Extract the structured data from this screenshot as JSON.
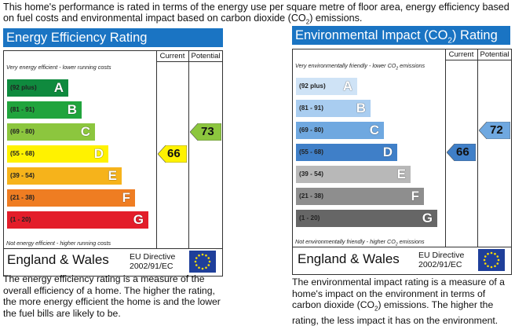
{
  "intro": {
    "line1": "This home's performance is rated in terms of the energy use per square metre of floor area, energy efficiency based",
    "line2_pre": "on fuel costs and environmental impact based on carbon dioxide (CO",
    "line2_sub": "2",
    "line2_post": ") emissions."
  },
  "eer": {
    "title": "Energy Efficiency Rating",
    "col_current": "Current",
    "col_potential": "Potential",
    "top_note": "Very energy efficient - lower running costs",
    "bottom_note": "Not energy efficient - higher running costs",
    "bands": [
      {
        "range": "(92 plus)",
        "letter": "A",
        "color": "#0f8a3e"
      },
      {
        "range": "(81 - 91)",
        "letter": "B",
        "color": "#21a43d"
      },
      {
        "range": "(69 - 80)",
        "letter": "C",
        "color": "#8cc63e"
      },
      {
        "range": "(55 - 68)",
        "letter": "D",
        "color": "#fff200"
      },
      {
        "range": "(39 - 54)",
        "letter": "E",
        "color": "#f6b31b"
      },
      {
        "range": "(21 - 38)",
        "letter": "F",
        "color": "#ef7d22"
      },
      {
        "range": "(1 - 20)",
        "letter": "G",
        "color": "#e31d2a"
      }
    ],
    "current": {
      "value": "66",
      "band": "D",
      "color": "#fff200"
    },
    "potential": {
      "value": "73",
      "band": "C",
      "color": "#8cc63e"
    },
    "country": "England & Wales",
    "directive_line1": "EU Directive",
    "directive_line2": "2002/91/EC",
    "description": [
      "The energy efficiency rating is a measure of the",
      "overall efficiency of a home. The higher the rating,",
      "the more energy efficient the home is and the lower",
      "the fuel bills are likely to be."
    ]
  },
  "ei": {
    "title_pre": "Environmental Impact (CO",
    "title_sub": "2",
    "title_post": ") Rating",
    "col_current": "Current",
    "col_potential": "Potential",
    "top_note_pre": "Very environmentally friendly - lower CO",
    "top_note_sub": "2",
    "top_note_post": " emissions",
    "bottom_note_pre": "Not environmentally friendly - higher CO",
    "bottom_note_sub": "2",
    "bottom_note_post": " emissions",
    "bands": [
      {
        "range": "(92 plus)",
        "letter": "A",
        "color": "#cfe3f6"
      },
      {
        "range": "(81 - 91)",
        "letter": "B",
        "color": "#a9cdf0"
      },
      {
        "range": "(69 - 80)",
        "letter": "C",
        "color": "#6fa8e0"
      },
      {
        "range": "(55 - 68)",
        "letter": "D",
        "color": "#3f7fc8"
      },
      {
        "range": "(39 - 54)",
        "letter": "E",
        "color": "#b8b8b8"
      },
      {
        "range": "(21 - 38)",
        "letter": "F",
        "color": "#8e8e8e"
      },
      {
        "range": "(1 - 20)",
        "letter": "G",
        "color": "#666666"
      }
    ],
    "current": {
      "value": "66",
      "band": "D",
      "color": "#3f7fc8"
    },
    "potential": {
      "value": "72",
      "band": "C",
      "color": "#6fa8e0"
    },
    "country": "England & Wales",
    "directive_line1": "EU Directive",
    "directive_line2": "2002/91/EC",
    "description_pre": "The environmental impact rating is a measure of a home's impact on the environment in terms of carbon dioxide (CO",
    "description_sub": "2",
    "description_post": ") emissions. The higher the rating, the less impact it has on the environment."
  },
  "icons": {
    "eu_flag": "eu-flag-icon"
  }
}
